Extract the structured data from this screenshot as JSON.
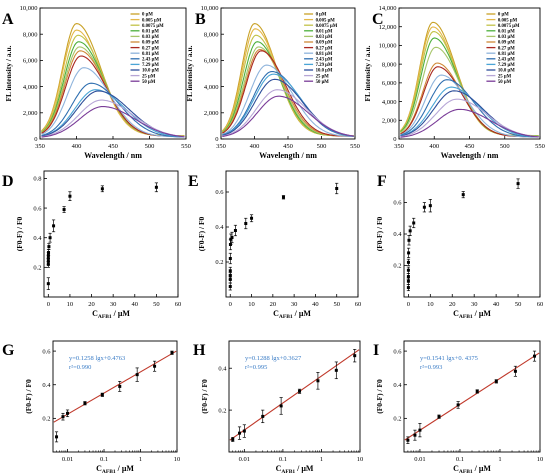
{
  "legend_labels": [
    "0 μM",
    "0.005 μM",
    "0.0075 μM",
    "0.01 μM",
    "0.03 μM",
    "0.09 μM",
    "0.27 μM",
    "0.81 μM",
    "2.43 μM",
    "7.29 μM",
    "10.0 μM",
    "25 μM",
    "50 μM"
  ],
  "chart_data": [
    {
      "panel": "A",
      "type": "line",
      "xlabel": "Wavelength / nm",
      "ylabel": "FL intensity / a.u.",
      "xlim": [
        350,
        550
      ],
      "ylim": [
        0,
        10000
      ],
      "xticks": [
        350,
        400,
        450,
        500,
        550
      ],
      "yticks": [
        0,
        2000,
        4000,
        6000,
        8000,
        10000
      ],
      "yticklabels": [
        "0",
        "2,000",
        "4,000",
        "6,000",
        "8,000",
        "10,000"
      ],
      "series": [
        {
          "name": "0 μM",
          "color": "#c9a227",
          "peak_x": 400,
          "peak_y": 8900
        },
        {
          "name": "0.005 μM",
          "color": "#e4b84a",
          "peak_x": 400,
          "peak_y": 8400
        },
        {
          "name": "0.0075 μM",
          "color": "#c2c248",
          "peak_x": 402,
          "peak_y": 8000
        },
        {
          "name": "0.01 μM",
          "color": "#4caf3c",
          "peak_x": 403,
          "peak_y": 7500
        },
        {
          "name": "0.03 μM",
          "color": "#a7c66b",
          "peak_x": 404,
          "peak_y": 7100
        },
        {
          "name": "0.09 μM",
          "color": "#d08a38",
          "peak_x": 405,
          "peak_y": 6800
        },
        {
          "name": "0.27 μM",
          "color": "#a9271f",
          "peak_x": 406,
          "peak_y": 6400
        },
        {
          "name": "0.81 μM",
          "color": "#8fb4dc",
          "peak_x": 410,
          "peak_y": 5500
        },
        {
          "name": "2.43 μM",
          "color": "#2f6fb0",
          "peak_x": 420,
          "peak_y": 4300
        },
        {
          "name": "7.29 μM",
          "color": "#4aa5d6",
          "peak_x": 426,
          "peak_y": 3800
        },
        {
          "name": "10.0 μM",
          "color": "#2e4f9a",
          "peak_x": 430,
          "peak_y": 3700
        },
        {
          "name": "25 μM",
          "color": "#b7a6d6",
          "peak_x": 434,
          "peak_y": 3000
        },
        {
          "name": "50 μM",
          "color": "#7a3c98",
          "peak_x": 436,
          "peak_y": 2500
        }
      ]
    },
    {
      "panel": "B",
      "type": "line",
      "xlabel": "Wavelength / nm",
      "ylabel": "FL intensity / a.u.",
      "xlim": [
        350,
        550
      ],
      "ylim": [
        0,
        10000
      ],
      "xticks": [
        350,
        400,
        450,
        500,
        550
      ],
      "yticks": [
        0,
        2000,
        4000,
        6000,
        8000,
        10000
      ],
      "yticklabels": [
        "0",
        "2,000",
        "4,000",
        "6,000",
        "8,000",
        "10,000"
      ],
      "series": [
        {
          "name": "0 μM",
          "color": "#c9a227",
          "peak_x": 400,
          "peak_y": 8900
        },
        {
          "name": "0.005 μM",
          "color": "#e4b84a",
          "peak_x": 401,
          "peak_y": 8500
        },
        {
          "name": "0.0075 μM",
          "color": "#c2c248",
          "peak_x": 402,
          "peak_y": 8000
        },
        {
          "name": "0.01 μM",
          "color": "#4caf3c",
          "peak_x": 404,
          "peak_y": 7500
        },
        {
          "name": "0.03 μM",
          "color": "#a7c66b",
          "peak_x": 406,
          "peak_y": 7100
        },
        {
          "name": "0.09 μM",
          "color": "#d08a38",
          "peak_x": 408,
          "peak_y": 6900
        },
        {
          "name": "0.27 μM",
          "color": "#a9271f",
          "peak_x": 410,
          "peak_y": 6800
        },
        {
          "name": "0.81 μM",
          "color": "#8fb4dc",
          "peak_x": 418,
          "peak_y": 5700
        },
        {
          "name": "2.43 μM",
          "color": "#2f6fb0",
          "peak_x": 426,
          "peak_y": 5200
        },
        {
          "name": "7.29 μM",
          "color": "#4aa5d6",
          "peak_x": 428,
          "peak_y": 5000
        },
        {
          "name": "10.0 μM",
          "color": "#2e4f9a",
          "peak_x": 430,
          "peak_y": 4600
        },
        {
          "name": "25 μM",
          "color": "#b7a6d6",
          "peak_x": 434,
          "peak_y": 3800
        },
        {
          "name": "50 μM",
          "color": "#7a3c98",
          "peak_x": 436,
          "peak_y": 3300
        }
      ]
    },
    {
      "panel": "C",
      "type": "line",
      "xlabel": "Wavelength / nm",
      "ylabel": "FL intensity / a.u.",
      "xlim": [
        350,
        550
      ],
      "ylim": [
        0,
        14000
      ],
      "xticks": [
        350,
        400,
        450,
        500,
        550
      ],
      "yticks": [
        0,
        2000,
        4000,
        6000,
        8000,
        10000,
        12000,
        14000
      ],
      "yticklabels": [
        "0",
        "2,000",
        "4,000",
        "6,000",
        "8,000",
        "10,000",
        "12,000",
        "14,000"
      ],
      "series": [
        {
          "name": "0 μM",
          "color": "#c9a227",
          "peak_x": 398,
          "peak_y": 12600
        },
        {
          "name": "0.005 μM",
          "color": "#e4b84a",
          "peak_x": 398,
          "peak_y": 12100
        },
        {
          "name": "0.0075 μM",
          "color": "#c2c248",
          "peak_x": 399,
          "peak_y": 11600
        },
        {
          "name": "0.01 μM",
          "color": "#4caf3c",
          "peak_x": 400,
          "peak_y": 10900
        },
        {
          "name": "0.03 μM",
          "color": "#a7c66b",
          "peak_x": 402,
          "peak_y": 9900
        },
        {
          "name": "0.09 μM",
          "color": "#d08a38",
          "peak_x": 404,
          "peak_y": 8200
        },
        {
          "name": "0.27 μM",
          "color": "#a9271f",
          "peak_x": 405,
          "peak_y": 7800
        },
        {
          "name": "0.81 μM",
          "color": "#8fb4dc",
          "peak_x": 410,
          "peak_y": 6900
        },
        {
          "name": "2.43 μM",
          "color": "#2f6fb0",
          "peak_x": 418,
          "peak_y": 6400
        },
        {
          "name": "7.29 μM",
          "color": "#4aa5d6",
          "peak_x": 424,
          "peak_y": 5600
        },
        {
          "name": "10.0 μM",
          "color": "#2e4f9a",
          "peak_x": 428,
          "peak_y": 5200
        },
        {
          "name": "25 μM",
          "color": "#b7a6d6",
          "peak_x": 432,
          "peak_y": 4300
        },
        {
          "name": "50 μM",
          "color": "#7a3c98",
          "peak_x": 436,
          "peak_y": 3200
        }
      ]
    },
    {
      "panel": "D",
      "type": "scatter",
      "xlabel": "C",
      "xlabel_sub": "AFB1",
      "xlabel_unit": " / μM",
      "ylabel": "(F0-F) / F0",
      "xlim": [
        -2,
        60
      ],
      "ylim": [
        0,
        0.85
      ],
      "xticks": [
        0,
        10,
        20,
        30,
        40,
        50,
        60
      ],
      "yticks": [
        0.2,
        0.4,
        0.6,
        0.8
      ],
      "yticklabels": [
        "0.2",
        "0.4",
        "0.6",
        "0.8"
      ],
      "points": [
        {
          "x": 0,
          "y": 0.09,
          "err": 0.04
        },
        {
          "x": 0.005,
          "y": 0.22,
          "err": 0.02
        },
        {
          "x": 0.0075,
          "y": 0.24,
          "err": 0.02
        },
        {
          "x": 0.01,
          "y": 0.26,
          "err": 0.02
        },
        {
          "x": 0.03,
          "y": 0.28,
          "err": 0.02
        },
        {
          "x": 0.09,
          "y": 0.3,
          "err": 0.02
        },
        {
          "x": 0.27,
          "y": 0.34,
          "err": 0.02
        },
        {
          "x": 0.81,
          "y": 0.4,
          "err": 0.03
        },
        {
          "x": 2.43,
          "y": 0.48,
          "err": 0.04
        },
        {
          "x": 7.29,
          "y": 0.59,
          "err": 0.02
        },
        {
          "x": 10.0,
          "y": 0.68,
          "err": 0.03
        },
        {
          "x": 25,
          "y": 0.73,
          "err": 0.02
        },
        {
          "x": 50,
          "y": 0.74,
          "err": 0.03
        }
      ]
    },
    {
      "panel": "E",
      "type": "scatter",
      "xlabel": "C",
      "xlabel_sub": "AFB1",
      "xlabel_unit": " / μM",
      "ylabel": "(F0-F) / F0",
      "xlim": [
        -2,
        60
      ],
      "ylim": [
        0,
        0.72
      ],
      "xticks": [
        0,
        10,
        20,
        30,
        40,
        50,
        60
      ],
      "yticks": [
        0.2,
        0.4,
        0.6
      ],
      "yticklabels": [
        "0.2",
        "0.4",
        "0.6"
      ],
      "points": [
        {
          "x": 0,
          "y": 0.06,
          "err": 0.02
        },
        {
          "x": 0.005,
          "y": 0.1,
          "err": 0.02
        },
        {
          "x": 0.0075,
          "y": 0.12,
          "err": 0.02
        },
        {
          "x": 0.01,
          "y": 0.15,
          "err": 0.02
        },
        {
          "x": 0.03,
          "y": 0.22,
          "err": 0.03
        },
        {
          "x": 0.09,
          "y": 0.3,
          "err": 0.03
        },
        {
          "x": 0.27,
          "y": 0.33,
          "err": 0.03
        },
        {
          "x": 0.81,
          "y": 0.34,
          "err": 0.03
        },
        {
          "x": 2.43,
          "y": 0.38,
          "err": 0.03
        },
        {
          "x": 7.29,
          "y": 0.42,
          "err": 0.03
        },
        {
          "x": 10.0,
          "y": 0.45,
          "err": 0.02
        },
        {
          "x": 25,
          "y": 0.57,
          "err": 0.01
        },
        {
          "x": 50,
          "y": 0.62,
          "err": 0.03
        }
      ]
    },
    {
      "panel": "F",
      "type": "scatter",
      "xlabel": "C",
      "xlabel_sub": "AFB1",
      "xlabel_unit": " / μM",
      "ylabel": "(F0-F) / F0",
      "xlim": [
        -2,
        60
      ],
      "ylim": [
        0,
        0.8
      ],
      "xticks": [
        0,
        10,
        20,
        30,
        40,
        50,
        60
      ],
      "yticks": [
        0.2,
        0.4,
        0.6
      ],
      "yticklabels": [
        "0.2",
        "0.4",
        "0.6"
      ],
      "points": [
        {
          "x": 0,
          "y": 0.06,
          "err": 0.02
        },
        {
          "x": 0.005,
          "y": 0.1,
          "err": 0.02
        },
        {
          "x": 0.0075,
          "y": 0.13,
          "err": 0.02
        },
        {
          "x": 0.01,
          "y": 0.17,
          "err": 0.02
        },
        {
          "x": 0.03,
          "y": 0.22,
          "err": 0.02
        },
        {
          "x": 0.09,
          "y": 0.28,
          "err": 0.03
        },
        {
          "x": 0.27,
          "y": 0.36,
          "err": 0.03
        },
        {
          "x": 0.81,
          "y": 0.42,
          "err": 0.03
        },
        {
          "x": 2.43,
          "y": 0.47,
          "err": 0.03
        },
        {
          "x": 7.29,
          "y": 0.57,
          "err": 0.03
        },
        {
          "x": 10.0,
          "y": 0.58,
          "err": 0.04
        },
        {
          "x": 25,
          "y": 0.65,
          "err": 0.02
        },
        {
          "x": 50,
          "y": 0.72,
          "err": 0.03
        }
      ]
    },
    {
      "panel": "G",
      "type": "scatter",
      "xscale": "log",
      "xlabel": "C",
      "xlabel_sub": "AFB1",
      "xlabel_unit": " / μM",
      "ylabel": "(F0-F) / F0",
      "xlim": [
        0.004,
        10
      ],
      "ylim": [
        0,
        0.66
      ],
      "xticks": [
        0.01,
        0.1,
        1,
        10
      ],
      "xticklabels": [
        "0.01",
        "0.1",
        "1",
        "10"
      ],
      "yticks": [
        0.2,
        0.4,
        0.6
      ],
      "yticklabels": [
        "0.2",
        "0.4",
        "0.6"
      ],
      "equation": "y=0.1258 lgx+0.4763",
      "r2": "r²=0.990",
      "fit": {
        "slope": 0.1258,
        "intercept": 0.4763
      },
      "points": [
        {
          "x": 0.005,
          "y": 0.09,
          "err": 0.03
        },
        {
          "x": 0.0075,
          "y": 0.21,
          "err": 0.02
        },
        {
          "x": 0.01,
          "y": 0.23,
          "err": 0.02
        },
        {
          "x": 0.03,
          "y": 0.29,
          "err": 0.01
        },
        {
          "x": 0.09,
          "y": 0.34,
          "err": 0.01
        },
        {
          "x": 0.27,
          "y": 0.39,
          "err": 0.03
        },
        {
          "x": 0.81,
          "y": 0.46,
          "err": 0.04
        },
        {
          "x": 2.43,
          "y": 0.51,
          "err": 0.03
        },
        {
          "x": 7.29,
          "y": 0.59,
          "err": 0.01
        }
      ]
    },
    {
      "panel": "H",
      "type": "scatter",
      "xscale": "log",
      "xlabel": "C",
      "xlabel_sub": "AFB1",
      "xlabel_unit": " / μM",
      "ylabel": "(F0-F) / F0",
      "xlim": [
        0.004,
        10
      ],
      "ylim": [
        0,
        0.53
      ],
      "xticks": [
        0.01,
        0.1,
        1,
        10
      ],
      "xticklabels": [
        "0.01",
        "0.1",
        "1",
        "10"
      ],
      "yticks": [
        0.2,
        0.4
      ],
      "yticklabels": [
        "0.2",
        "0.4"
      ],
      "equation": "y=0.1288 lgx+0.3627",
      "r2": "r²=0.995",
      "fit": {
        "slope": 0.1288,
        "intercept": 0.3627
      },
      "points": [
        {
          "x": 0.005,
          "y": 0.06,
          "err": 0.01
        },
        {
          "x": 0.0075,
          "y": 0.09,
          "err": 0.03
        },
        {
          "x": 0.01,
          "y": 0.1,
          "err": 0.03
        },
        {
          "x": 0.03,
          "y": 0.17,
          "err": 0.03
        },
        {
          "x": 0.09,
          "y": 0.22,
          "err": 0.04
        },
        {
          "x": 0.27,
          "y": 0.29,
          "err": 0.01
        },
        {
          "x": 0.81,
          "y": 0.34,
          "err": 0.04
        },
        {
          "x": 2.43,
          "y": 0.39,
          "err": 0.04
        },
        {
          "x": 7.29,
          "y": 0.46,
          "err": 0.03
        }
      ]
    },
    {
      "panel": "I",
      "type": "scatter",
      "xscale": "log",
      "xlabel": "C",
      "xlabel_sub": "AFB1",
      "xlabel_unit": " / μM",
      "ylabel": "(F0-F) / F0",
      "xlim": [
        0.004,
        10
      ],
      "ylim": [
        0,
        0.66
      ],
      "xticks": [
        0.01,
        0.1,
        1,
        10
      ],
      "xticklabels": [
        "0.01",
        "0.1",
        "1",
        "10"
      ],
      "yticks": [
        0.2,
        0.4,
        0.6
      ],
      "yticklabels": [
        "0.2",
        "0.4",
        "0.6"
      ],
      "equation": "y=0.1541 lgx+0. 4375",
      "r2": "r²=0.993",
      "fit": {
        "slope": 0.1541,
        "intercept": 0.4375
      },
      "points": [
        {
          "x": 0.005,
          "y": 0.07,
          "err": 0.02
        },
        {
          "x": 0.0075,
          "y": 0.1,
          "err": 0.03
        },
        {
          "x": 0.01,
          "y": 0.13,
          "err": 0.04
        },
        {
          "x": 0.03,
          "y": 0.21,
          "err": 0.01
        },
        {
          "x": 0.09,
          "y": 0.28,
          "err": 0.02
        },
        {
          "x": 0.27,
          "y": 0.36,
          "err": 0.01
        },
        {
          "x": 0.81,
          "y": 0.42,
          "err": 0.01
        },
        {
          "x": 2.43,
          "y": 0.48,
          "err": 0.03
        },
        {
          "x": 7.29,
          "y": 0.57,
          "err": 0.03
        }
      ]
    }
  ]
}
